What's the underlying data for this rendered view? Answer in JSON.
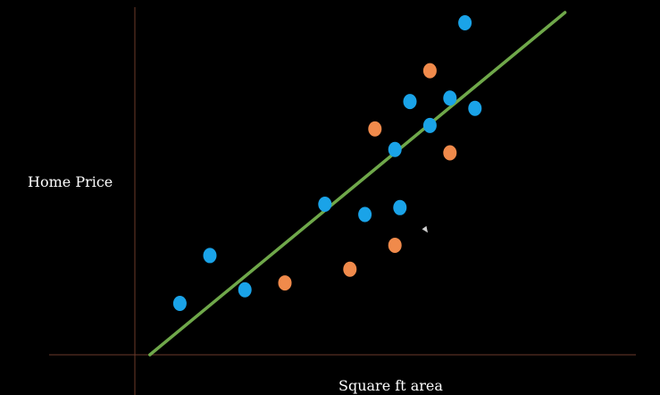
{
  "chart_data": {
    "type": "scatter",
    "title": "",
    "xlabel": "Square ft area",
    "ylabel": "Home Price",
    "grid": false,
    "legend": "none",
    "xlim": [
      0,
      100
    ],
    "ylim": [
      0,
      100
    ],
    "series": [
      {
        "color": "#1aa3e8",
        "points": [
          [
            9,
            15
          ],
          [
            15,
            29
          ],
          [
            22,
            19
          ],
          [
            38,
            44
          ],
          [
            46,
            41
          ],
          [
            53,
            43
          ],
          [
            52,
            60
          ],
          [
            55,
            74
          ],
          [
            59,
            67
          ],
          [
            63,
            75
          ],
          [
            66,
            97
          ],
          [
            68,
            72
          ]
        ]
      },
      {
        "color": "#f08a4b",
        "points": [
          [
            30,
            21
          ],
          [
            43,
            25
          ],
          [
            52,
            32
          ],
          [
            48,
            66
          ],
          [
            59,
            83
          ],
          [
            63,
            59
          ]
        ]
      }
    ],
    "fit_line": {
      "color": "#6fa84a",
      "points": [
        [
          3,
          0
        ],
        [
          86,
          100
        ]
      ]
    }
  },
  "colors": {
    "axis": "#6b3a2a",
    "background": "#000000"
  }
}
